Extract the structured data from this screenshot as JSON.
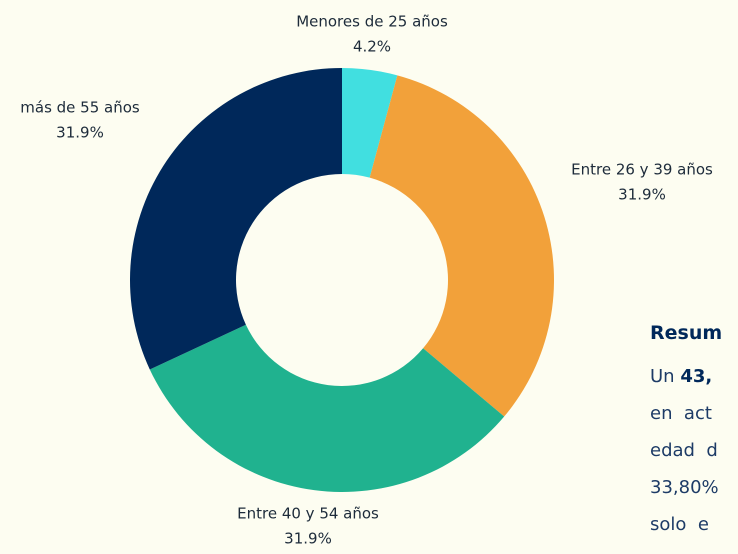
{
  "chart_data": {
    "type": "pie",
    "categories": [
      "Menores de 25 años",
      "Entre 26 y 39 años",
      "Entre 40 y 54 años",
      "más de 55 años"
    ],
    "values": [
      4.2,
      31.9,
      31.9,
      31.9
    ],
    "value_labels": [
      "4.2%",
      "31.9%",
      "31.9%",
      "31.9%"
    ],
    "colors": [
      "#41dfe0",
      "#f2a13a",
      "#20b28f",
      "#00285a"
    ]
  },
  "summary": {
    "title": "Resum",
    "lines": [
      [
        "Un ",
        "43,"
      ],
      [
        "en  act"
      ],
      [
        "edad  d"
      ],
      [
        "33,80%"
      ],
      [
        "solo  e"
      ]
    ]
  }
}
